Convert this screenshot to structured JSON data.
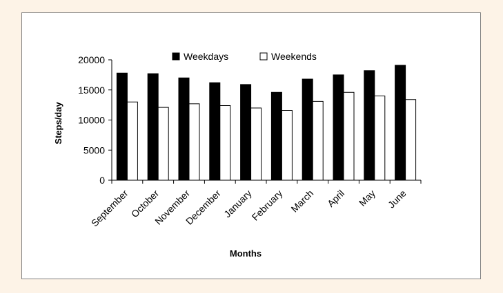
{
  "chart_data": {
    "type": "bar",
    "categories": [
      "September",
      "October",
      "November",
      "December",
      "January",
      "February",
      "March",
      "April",
      "May",
      "June"
    ],
    "series": [
      {
        "name": "Weekdays",
        "values": [
          17800,
          17700,
          17000,
          16200,
          15900,
          14600,
          16800,
          17500,
          18200,
          19100
        ],
        "color": "#000000"
      },
      {
        "name": "Weekends",
        "values": [
          13000,
          12100,
          12700,
          12400,
          12000,
          11600,
          13100,
          14600,
          14000,
          13400
        ],
        "color": "#ffffff"
      }
    ],
    "title": "",
    "xlabel": "Months",
    "ylabel": "Steps/day",
    "ylim": [
      0,
      20000
    ],
    "yticks": [
      0,
      5000,
      10000,
      15000,
      20000
    ],
    "grid": false,
    "legend": "top"
  },
  "colors": {
    "page_background": "#fdf3e7",
    "frame_border": "#7f7f7f",
    "bar_outline": "#000000"
  }
}
